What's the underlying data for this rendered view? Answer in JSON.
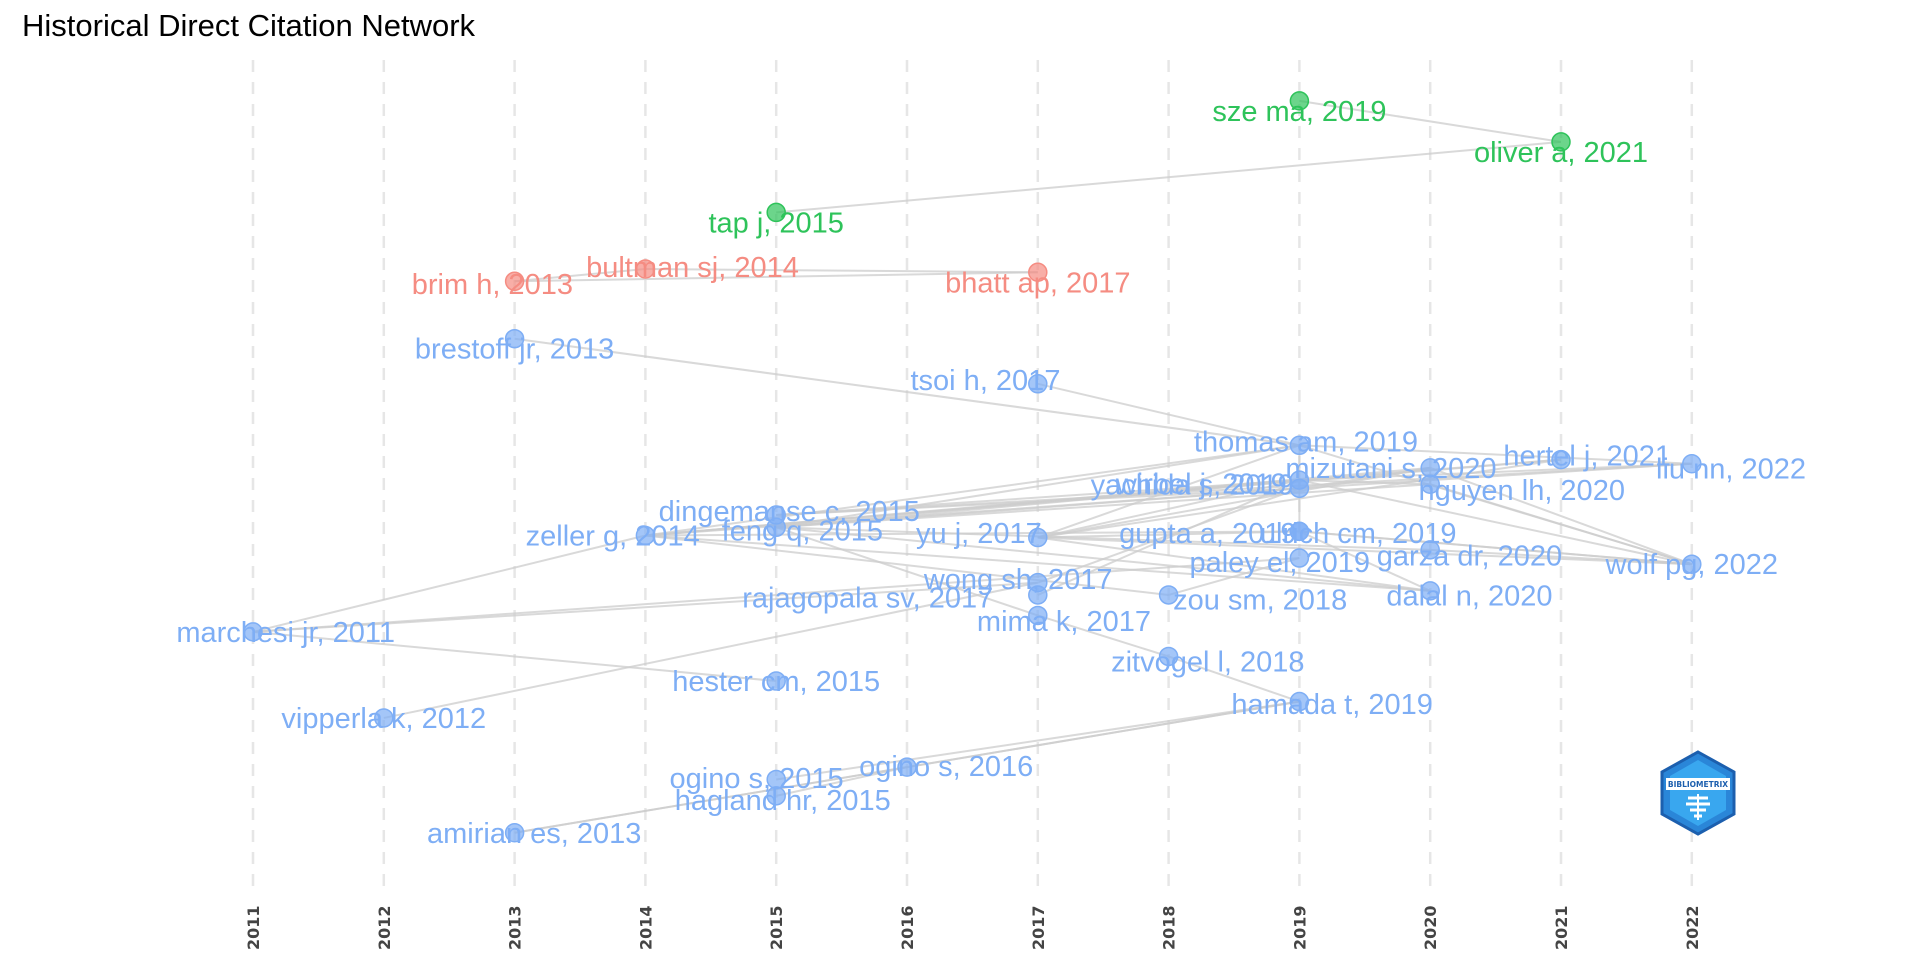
{
  "title": "Historical Direct Citation Network",
  "logo_text": "BIBLIOMETRIX",
  "chart_data": {
    "type": "network",
    "title": "Historical Direct Citation Network",
    "xlabel": "",
    "ylabel": "",
    "xlim": [
      2011,
      2022
    ],
    "grid": "vertical dashed",
    "x_ticks": [
      "2011",
      "2012",
      "2013",
      "2014",
      "2015",
      "2016",
      "2017",
      "2018",
      "2019",
      "2020",
      "2021",
      "2022"
    ],
    "colors": {
      "blue": "#7eaef5",
      "green": "#2ec35a",
      "red": "#f58c82",
      "edge": "#cccccc"
    },
    "nodes": [
      {
        "id": "sze ma, 2019",
        "year": 2019,
        "row": 0.9,
        "group": "green",
        "dx": 0,
        "dy": 1
      },
      {
        "id": "oliver a, 2021",
        "year": 2021,
        "row": 1.9,
        "group": "green",
        "dx": 0,
        "dy": 1
      },
      {
        "id": "tap j, 2015",
        "year": 2015,
        "row": 3.62,
        "group": "green",
        "dx": 0,
        "dy": 1
      },
      {
        "id": "bhatt ap, 2017",
        "year": 2017,
        "row": 5.08,
        "group": "red",
        "dx": 0,
        "dy": 1
      },
      {
        "id": "bultman sj, 2014",
        "year": 2014,
        "row": 5.0,
        "group": "red",
        "dx": 0.36,
        "dy": -0.22
      },
      {
        "id": "brim h, 2013",
        "year": 2013,
        "row": 5.3,
        "group": "red",
        "dx": -0.17,
        "dy": 0.28
      },
      {
        "id": "brestoff jr, 2013",
        "year": 2013,
        "row": 6.7,
        "group": "blue",
        "dx": 0,
        "dy": 1
      },
      {
        "id": "tsoi h, 2017",
        "year": 2017,
        "row": 7.8,
        "group": "blue",
        "dx": -0.4,
        "dy": -0.4
      },
      {
        "id": "thomas am, 2019",
        "year": 2019,
        "row": 9.3,
        "group": "blue",
        "dx": 0.05,
        "dy": -0.4
      },
      {
        "id": "hertel j, 2021",
        "year": 2021,
        "row": 9.65,
        "group": "blue",
        "dx": 0.2,
        "dy": -0.4
      },
      {
        "id": "liu nn, 2022",
        "year": 2022,
        "row": 9.75,
        "group": "blue",
        "dx": 0.3,
        "dy": 0.45
      },
      {
        "id": "yachida s, 2019",
        "year": 2019,
        "row": 10.35,
        "group": "blue",
        "dx": -0.82,
        "dy": -0.4
      },
      {
        "id": "mizutani s, 2020",
        "year": 2020,
        "row": 9.85,
        "group": "blue",
        "dx": -0.3,
        "dy": 0
      },
      {
        "id": "wirbel j, 2019",
        "year": 2019,
        "row": 10.15,
        "group": "blue",
        "dx": -0.75,
        "dy": 0.35
      },
      {
        "id": "nguyen lh, 2020",
        "year": 2020,
        "row": 10.25,
        "group": "blue",
        "dx": 0.7,
        "dy": 0.55
      },
      {
        "id": "dingemanse c, 2015",
        "year": 2015,
        "row": 11.0,
        "group": "blue",
        "dx": 0.1,
        "dy": -0.4
      },
      {
        "id": "zeller g, 2014",
        "year": 2014,
        "row": 11.5,
        "group": "blue",
        "dx": -0.25,
        "dy": 0
      },
      {
        "id": "feng q, 2015",
        "year": 2015,
        "row": 11.3,
        "group": "blue",
        "dx": 0.2,
        "dy": 0.3
      },
      {
        "id": "yu j, 2017",
        "year": 2017,
        "row": 11.55,
        "group": "blue",
        "dx": -0.45,
        "dy": -0.45
      },
      {
        "id": "gupta a, 2019",
        "year": 2019,
        "row": 11.4,
        "group": "blue",
        "dx": -0.7,
        "dy": 0.15
      },
      {
        "id": "ulrich cm, 2019",
        "year": 2019,
        "row": 11.4,
        "group": "blue",
        "dx": 0.45,
        "dy": 0.15
      },
      {
        "id": "wolf pg, 2022",
        "year": 2022,
        "row": 12.2,
        "group": "blue",
        "dx": 0,
        "dy": 0
      },
      {
        "id": "garza dr, 2020",
        "year": 2020,
        "row": 11.85,
        "group": "blue",
        "dx": 0.3,
        "dy": 0.55
      },
      {
        "id": "wong sh, 2017",
        "year": 2017,
        "row": 12.65,
        "group": "blue",
        "dx": -0.15,
        "dy": -0.35
      },
      {
        "id": "paley el, 2019",
        "year": 2019,
        "row": 12.05,
        "group": "blue",
        "dx": -0.15,
        "dy": 0.4
      },
      {
        "id": "rajagopala sv, 2017",
        "year": 2017,
        "row": 12.95,
        "group": "blue",
        "dx": -1.3,
        "dy": 0.25
      },
      {
        "id": "zou sm, 2018",
        "year": 2018,
        "row": 12.95,
        "group": "blue",
        "dx": 0.7,
        "dy": 0.45
      },
      {
        "id": "dalal n, 2020",
        "year": 2020,
        "row": 12.85,
        "group": "blue",
        "dx": 0.3,
        "dy": 0.45
      },
      {
        "id": "mima k, 2017",
        "year": 2017,
        "row": 13.45,
        "group": "blue",
        "dx": 0.2,
        "dy": 0.55
      },
      {
        "id": "marchesi jr, 2011",
        "year": 2011,
        "row": 13.85,
        "group": "blue",
        "dx": 0.25,
        "dy": 0
      },
      {
        "id": "zitvogel l, 2018",
        "year": 2018,
        "row": 14.45,
        "group": "blue",
        "dx": 0.3,
        "dy": 0.5
      },
      {
        "id": "hester cm, 2015",
        "year": 2015,
        "row": 15.05,
        "group": "blue",
        "dx": 0,
        "dy": 0
      },
      {
        "id": "hamada t, 2019",
        "year": 2019,
        "row": 15.55,
        "group": "blue",
        "dx": 0.25,
        "dy": 0.25
      },
      {
        "id": "vipperla k, 2012",
        "year": 2012,
        "row": 15.95,
        "group": "blue",
        "dx": 0,
        "dy": 0
      },
      {
        "id": "ogino s, 2016",
        "year": 2016,
        "row": 17.15,
        "group": "blue",
        "dx": 0.3,
        "dy": -0.1
      },
      {
        "id": "ogino s, 2015",
        "year": 2015,
        "row": 17.45,
        "group": "blue",
        "dx": -0.15,
        "dy": -0.15
      },
      {
        "id": "hagland hr, 2015",
        "year": 2015,
        "row": 17.85,
        "group": "blue",
        "dx": 0.05,
        "dy": 0.4
      },
      {
        "id": "amirian es, 2013",
        "year": 2013,
        "row": 18.75,
        "group": "blue",
        "dx": 0.15,
        "dy": 0
      }
    ],
    "edges": [
      [
        "tap j, 2015",
        "oliver a, 2021"
      ],
      [
        "sze ma, 2019",
        "oliver a, 2021"
      ],
      [
        "brim h, 2013",
        "bhatt ap, 2017"
      ],
      [
        "bultman sj, 2014",
        "bhatt ap, 2017"
      ],
      [
        "brim h, 2013",
        "bultman sj, 2014"
      ],
      [
        "brestoff jr, 2013",
        "thomas am, 2019"
      ],
      [
        "tsoi h, 2017",
        "thomas am, 2019"
      ],
      [
        "thomas am, 2019",
        "liu nn, 2022"
      ],
      [
        "thomas am, 2019",
        "wolf pg, 2022"
      ],
      [
        "zeller g, 2014",
        "yachida s, 2019"
      ],
      [
        "zeller g, 2014",
        "wirbel j, 2019"
      ],
      [
        "zeller g, 2014",
        "thomas am, 2019"
      ],
      [
        "zeller g, 2014",
        "gupta a, 2019"
      ],
      [
        "zeller g, 2014",
        "mizutani s, 2020"
      ],
      [
        "zeller g, 2014",
        "hertel j, 2021"
      ],
      [
        "feng q, 2015",
        "wirbel j, 2019"
      ],
      [
        "feng q, 2015",
        "thomas am, 2019"
      ],
      [
        "feng q, 2015",
        "yachida s, 2019"
      ],
      [
        "feng q, 2015",
        "garza dr, 2020"
      ],
      [
        "feng q, 2015",
        "nguyen lh, 2020"
      ],
      [
        "dingemanse c, 2015",
        "wirbel j, 2019"
      ],
      [
        "dingemanse c, 2015",
        "yachida s, 2019"
      ],
      [
        "dingemanse c, 2015",
        "liu nn, 2022"
      ],
      [
        "yu j, 2017",
        "wirbel j, 2019"
      ],
      [
        "yu j, 2017",
        "gupta a, 2019"
      ],
      [
        "yu j, 2017",
        "mizutani s, 2020"
      ],
      [
        "yu j, 2017",
        "dalal n, 2020"
      ],
      [
        "yu j, 2017",
        "wolf pg, 2022"
      ],
      [
        "wirbel j, 2019",
        "liu nn, 2022"
      ],
      [
        "wirbel j, 2019",
        "hertel j, 2021"
      ],
      [
        "wirbel j, 2019",
        "wolf pg, 2022"
      ],
      [
        "wirbel j, 2019",
        "nguyen lh, 2020"
      ],
      [
        "wirbel j, 2019",
        "ulrich cm, 2019"
      ],
      [
        "yachida s, 2019",
        "liu nn, 2022"
      ],
      [
        "yachida s, 2019",
        "mizutani s, 2020"
      ],
      [
        "thomas am, 2019",
        "yachida s, 2019"
      ],
      [
        "gupta a, 2019",
        "wolf pg, 2022"
      ],
      [
        "garza dr, 2020",
        "wolf pg, 2022"
      ],
      [
        "mizutani s, 2020",
        "wolf pg, 2022"
      ],
      [
        "ulrich cm, 2019",
        "dalal n, 2020"
      ],
      [
        "marchesi jr, 2011",
        "zeller g, 2014"
      ],
      [
        "marchesi jr, 2011",
        "paley el, 2019"
      ],
      [
        "marchesi jr, 2011",
        "wong sh, 2017"
      ],
      [
        "marchesi jr, 2011",
        "hester cm, 2015"
      ],
      [
        "feng q, 2015",
        "mima k, 2017"
      ],
      [
        "mima k, 2017",
        "zitvogel l, 2018"
      ],
      [
        "zitvogel l, 2018",
        "hamada t, 2019"
      ],
      [
        "vipperla k, 2012",
        "wong sh, 2017"
      ],
      [
        "amirian es, 2013",
        "ogino s, 2016"
      ],
      [
        "amirian es, 2013",
        "hamada t, 2019"
      ],
      [
        "ogino s, 2015",
        "hamada t, 2019"
      ],
      [
        "ogino s, 2016",
        "hamada t, 2019"
      ],
      [
        "hagland hr, 2015",
        "ogino s, 2016"
      ],
      [
        "paley el, 2019",
        "zou sm, 2018"
      ],
      [
        "feng q, 2015",
        "dalal n, 2020"
      ],
      [
        "zeller g, 2014",
        "dalal n, 2020"
      ],
      [
        "zeller g, 2014",
        "zou sm, 2018"
      ],
      [
        "yu j, 2017",
        "hertel j, 2021"
      ],
      [
        "wong sh, 2017",
        "yachida s, 2019"
      ],
      [
        "rajagopala sv, 2017",
        "wirbel j, 2019"
      ],
      [
        "yu j, 2017",
        "thomas am, 2019"
      ],
      [
        "mizutani s, 2020",
        "nguyen lh, 2020"
      ],
      [
        "nguyen lh, 2020",
        "wolf pg, 2022"
      ],
      [
        "ulrich cm, 2019",
        "wolf pg, 2022"
      ]
    ]
  }
}
